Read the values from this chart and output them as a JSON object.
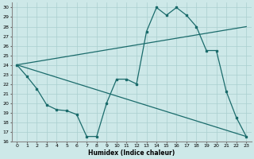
{
  "xlabel": "Humidex (Indice chaleur)",
  "xlim": [
    -0.5,
    23.5
  ],
  "ylim": [
    16,
    30.5
  ],
  "yticks": [
    16,
    17,
    18,
    19,
    20,
    21,
    22,
    23,
    24,
    25,
    26,
    27,
    28,
    29,
    30
  ],
  "xticks": [
    0,
    1,
    2,
    3,
    4,
    5,
    6,
    7,
    8,
    9,
    10,
    11,
    12,
    13,
    14,
    15,
    16,
    17,
    18,
    19,
    20,
    21,
    22,
    23
  ],
  "bg_color": "#cde8e8",
  "grid_color": "#aacfcf",
  "line_color": "#1a6b6b",
  "line1_x": [
    0,
    1,
    2,
    3,
    4,
    5,
    6,
    7,
    8,
    9,
    10,
    11,
    12,
    13,
    14,
    15,
    16,
    17,
    18,
    19,
    20,
    21,
    22,
    23
  ],
  "line1_y": [
    24,
    22.8,
    21.5,
    19.8,
    19.3,
    19.2,
    18.8,
    16.5,
    16.5,
    20.0,
    22.5,
    22.5,
    22.0,
    27.5,
    30.0,
    29.2,
    30.0,
    29.2,
    28.0,
    25.5,
    25.5,
    21.2,
    18.5,
    16.5
  ],
  "line2_x": [
    0,
    23
  ],
  "line2_y": [
    24.0,
    28.0
  ],
  "line3_x": [
    0,
    23
  ],
  "line3_y": [
    24.0,
    16.5
  ],
  "figsize": [
    3.2,
    2.0
  ],
  "dpi": 100
}
